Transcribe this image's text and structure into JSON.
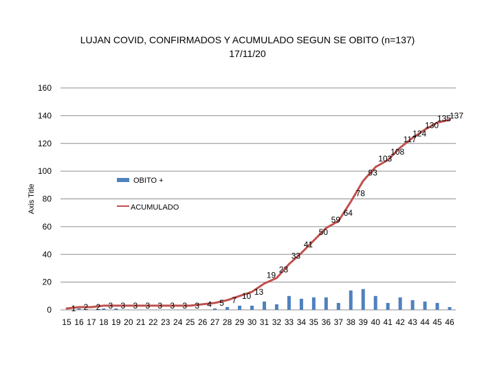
{
  "chart_data": {
    "type": "bar+line",
    "title_line1": "LUJAN COVID, CONFIRMADOS Y ACUMULADO SEGUN SE OBITO (n=137)",
    "title_line2": "17/11/20",
    "ylabel": "Axis Title",
    "ylim": [
      0,
      160
    ],
    "yticks": [
      0,
      20,
      40,
      60,
      80,
      100,
      120,
      140,
      160
    ],
    "grid": true,
    "legend_position": "left-middle",
    "categories": [
      "15",
      "16",
      "17",
      "18",
      "19",
      "20",
      "21",
      "22",
      "23",
      "24",
      "25",
      "26",
      "27",
      "28",
      "29",
      "30",
      "31",
      "32",
      "33",
      "34",
      "35",
      "36",
      "37",
      "38",
      "39",
      "40",
      "41",
      "42",
      "43",
      "44",
      "45",
      "46"
    ],
    "series": [
      {
        "name": "OBITO +",
        "type": "bar",
        "color": "#4f81bd",
        "values": [
          0,
          1,
          0,
          1,
          1,
          0,
          0,
          0,
          0,
          0,
          0,
          0,
          1,
          2,
          3,
          3,
          6,
          4,
          10,
          8,
          9,
          9,
          5,
          14,
          15,
          10,
          5,
          9,
          7,
          6,
          5,
          2
        ]
      },
      {
        "name": "ACUMULADO",
        "type": "line",
        "color": "#c0504d",
        "values": [
          1,
          2,
          2,
          3,
          3,
          3,
          3,
          3,
          3,
          3,
          3,
          4,
          5,
          7,
          10,
          13,
          19,
          23,
          33,
          41,
          50,
          59,
          64,
          78,
          93,
          103,
          108,
          117,
          124,
          130,
          135,
          137
        ]
      }
    ],
    "data_labels": [
      "1",
      "2",
      "2",
      "3",
      "3",
      "3",
      "3",
      "3",
      "3",
      "3",
      "3",
      "4",
      "5",
      "7",
      "10",
      "13",
      "19",
      "23",
      "33",
      "41",
      "50",
      "59",
      "64",
      "78",
      "93",
      "103",
      "108",
      "117",
      "124",
      "130",
      "135",
      "137"
    ]
  }
}
